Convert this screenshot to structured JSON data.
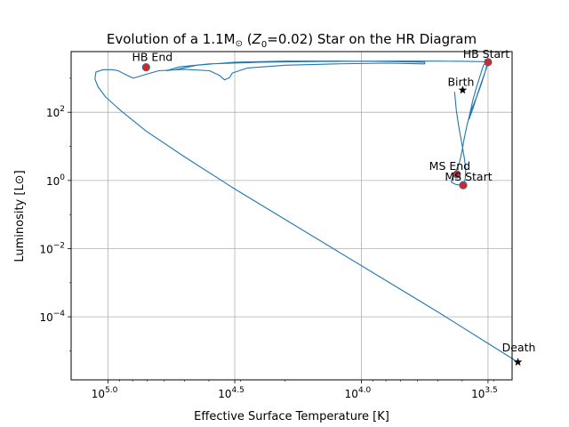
{
  "chart_data": {
    "type": "line",
    "title": "Evolution of a 1.1M⊙ (Z0=0.02) Star on the HR Diagram",
    "title_parts": {
      "pre": "Evolution of a 1.1M",
      "sun": "⊙",
      "mid1": " (",
      "z": "Z",
      "zsub": "0",
      "mid2": "=0.02) Star on the HR Diagram"
    },
    "xlabel": "Effective Surface Temperature [K]",
    "ylabel": "Luminosity [L⊙]",
    "x_scale": "log",
    "x_inverted": true,
    "y_scale": "log",
    "xlim_log10": [
      5.146,
      3.405
    ],
    "ylim_log10": [
      -5.85,
      3.78
    ],
    "grid": true,
    "x_ticks": [
      {
        "log10": 5.0,
        "base": "10",
        "exp": "5.0"
      },
      {
        "log10": 4.5,
        "base": "10",
        "exp": "4.5"
      },
      {
        "log10": 4.0,
        "base": "10",
        "exp": "4.0"
      },
      {
        "log10": 3.5,
        "base": "10",
        "exp": "3.5"
      }
    ],
    "y_ticks": [
      {
        "log10": 2,
        "base": "10",
        "exp": "2"
      },
      {
        "log10": 0,
        "base": "10",
        "exp": "0"
      },
      {
        "log10": -2,
        "base": "10",
        "exp": "−2"
      },
      {
        "log10": -4,
        "base": "10",
        "exp": "−4"
      }
    ],
    "series_color": "#1f77b4",
    "track_log": [
      [
        3.632,
        2.6
      ],
      [
        3.625,
        2.05
      ],
      [
        3.615,
        1.55
      ],
      [
        3.605,
        1.15
      ],
      [
        3.595,
        0.72
      ],
      [
        3.588,
        0.35
      ],
      [
        3.59,
        0.05
      ],
      [
        3.595,
        -0.1
      ],
      [
        3.605,
        -0.14
      ],
      [
        3.627,
        -0.12
      ],
      [
        3.645,
        -0.05
      ],
      [
        3.64,
        0.1
      ],
      [
        3.625,
        0.3
      ],
      [
        3.612,
        0.55
      ],
      [
        3.603,
        0.85
      ],
      [
        3.595,
        1.2
      ],
      [
        3.585,
        1.55
      ],
      [
        3.572,
        1.95
      ],
      [
        3.56,
        2.35
      ],
      [
        3.545,
        2.75
      ],
      [
        3.53,
        3.1
      ],
      [
        3.518,
        3.38
      ],
      [
        3.505,
        3.46
      ],
      [
        3.5,
        3.49
      ],
      [
        3.503,
        3.42
      ],
      [
        3.515,
        3.1
      ],
      [
        3.528,
        2.8
      ],
      [
        3.545,
        2.45
      ],
      [
        3.56,
        2.1
      ],
      [
        3.575,
        1.8
      ],
      [
        3.567,
        2.05
      ],
      [
        3.548,
        2.4
      ],
      [
        3.532,
        2.75
      ],
      [
        3.518,
        3.05
      ],
      [
        3.506,
        3.3
      ],
      [
        3.5,
        3.44
      ],
      [
        3.502,
        3.48
      ],
      [
        3.56,
        3.49
      ],
      [
        3.7,
        3.5
      ],
      [
        3.9,
        3.5
      ],
      [
        4.15,
        3.49
      ],
      [
        4.4,
        3.47
      ],
      [
        4.6,
        3.42
      ],
      [
        4.72,
        3.33
      ],
      [
        4.77,
        3.22
      ],
      [
        4.735,
        3.25
      ],
      [
        4.65,
        3.38
      ],
      [
        4.5,
        3.47
      ],
      [
        4.3,
        3.5
      ],
      [
        4.1,
        3.5
      ],
      [
        3.9,
        3.49
      ],
      [
        3.75,
        3.47
      ],
      [
        3.75,
        3.42
      ],
      [
        3.9,
        3.44
      ],
      [
        4.1,
        3.42
      ],
      [
        4.3,
        3.38
      ],
      [
        4.45,
        3.3
      ],
      [
        4.51,
        3.15
      ],
      [
        4.52,
        3.02
      ],
      [
        4.54,
        2.95
      ],
      [
        4.56,
        3.08
      ],
      [
        4.6,
        3.22
      ],
      [
        4.7,
        3.26
      ],
      [
        4.8,
        3.22
      ],
      [
        4.86,
        3.09
      ],
      [
        4.9,
        3.0
      ],
      [
        4.935,
        3.12
      ],
      [
        4.96,
        3.22
      ],
      [
        4.985,
        3.25
      ],
      [
        5.02,
        3.25
      ],
      [
        5.048,
        3.18
      ],
      [
        5.052,
        2.98
      ],
      [
        5.04,
        2.75
      ],
      [
        5.01,
        2.45
      ],
      [
        4.95,
        2.05
      ],
      [
        4.85,
        1.45
      ],
      [
        4.7,
        0.7
      ],
      [
        4.5,
        -0.25
      ],
      [
        4.3,
        -1.15
      ],
      [
        4.1,
        -2.05
      ],
      [
        3.9,
        -2.95
      ],
      [
        3.7,
        -3.85
      ],
      [
        3.5,
        -4.78
      ],
      [
        3.382,
        -5.33
      ]
    ],
    "markers": [
      {
        "label": "HB Start",
        "log_t": 3.5,
        "log_l": 3.47,
        "symbol": "circle"
      },
      {
        "label": "HB End",
        "log_t": 4.85,
        "log_l": 3.32,
        "symbol": "circle"
      },
      {
        "label": "MS End",
        "log_t": 3.623,
        "log_l": 0.18,
        "symbol": "circle"
      },
      {
        "label": "MS Start",
        "log_t": 3.598,
        "log_l": -0.14,
        "symbol": "circle"
      },
      {
        "label": "Birth",
        "log_t": 3.6,
        "log_l": 2.65,
        "symbol": "star"
      },
      {
        "label": "Death",
        "log_t": 3.382,
        "log_l": -5.33,
        "symbol": "star"
      }
    ],
    "marker_fill": "#d62728",
    "star_fill": "#000000"
  }
}
